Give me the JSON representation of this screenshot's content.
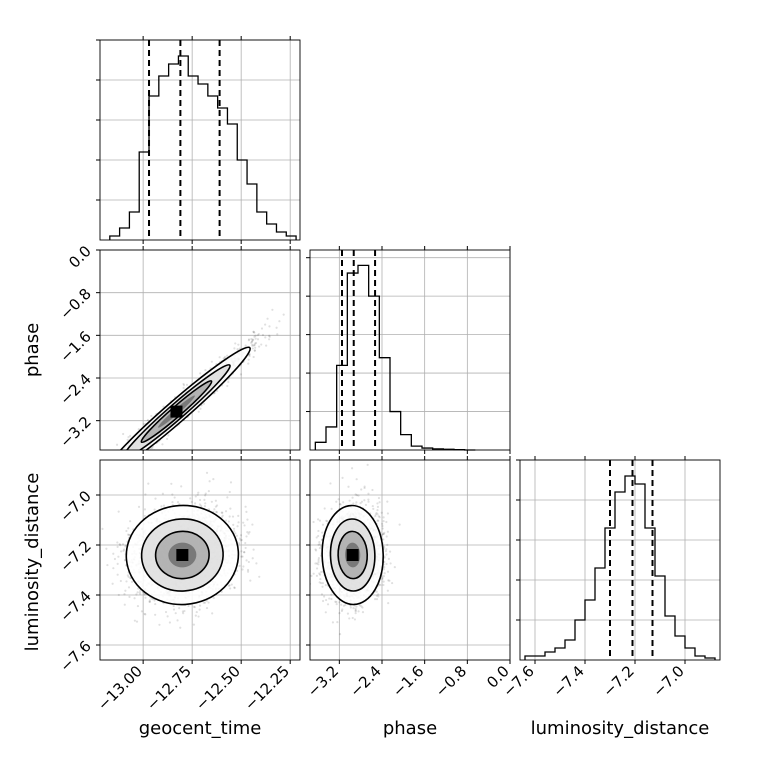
{
  "chart_data": {
    "type": "corner",
    "parameters": [
      "geocent_time",
      "phase",
      "luminosity_distance"
    ],
    "axis_labels": {
      "geocent_time": "geocent_time",
      "phase": "phase",
      "luminosity_distance": "luminosity_distance"
    },
    "ranges": {
      "geocent_time": [
        -13.22,
        -12.2
      ],
      "phase": [
        -3.75,
        0.0
      ],
      "luminosity_distance": [
        -7.66,
        -6.86
      ]
    },
    "ticks": {
      "geocent_time": [
        -13.0,
        -12.75,
        -12.5,
        -12.25
      ],
      "phase": [
        -3.2,
        -2.4,
        -1.6,
        -0.8,
        0.0
      ],
      "luminosity_distance": [
        -7.6,
        -7.4,
        -7.2,
        -7.0
      ]
    },
    "tick_labels": {
      "geocent_time": [
        "−13.00",
        "−12.75",
        "−12.50",
        "−12.25"
      ],
      "phase": [
        "−3.2",
        "−2.4",
        "−1.6",
        "−0.8",
        "0.0"
      ],
      "luminosity_distance": [
        "−7.6",
        "−7.4",
        "−7.2",
        "−7.0"
      ]
    },
    "quantiles": {
      "geocent_time": [
        -12.97,
        -12.81,
        -12.61
      ],
      "phase": [
        -3.15,
        -2.93,
        -2.53
      ],
      "luminosity_distance": [
        -7.3,
        -7.21,
        -7.13
      ]
    },
    "histograms": {
      "geocent_time": {
        "bins": [
          -13.17,
          -13.12,
          -13.07,
          -13.02,
          -12.97,
          -12.92,
          -12.87,
          -12.82,
          -12.77,
          -12.72,
          -12.67,
          -12.62,
          -12.57,
          -12.52,
          -12.47,
          -12.42,
          -12.37,
          -12.32,
          -12.27,
          -12.22
        ],
        "counts": [
          1,
          3,
          7,
          22,
          36,
          41,
          44,
          46,
          41,
          39,
          36,
          33,
          29,
          20,
          14,
          7,
          4,
          2,
          1
        ]
      },
      "phase": {
        "bins": [
          -3.65,
          -3.45,
          -3.25,
          -3.05,
          -2.85,
          -2.65,
          -2.45,
          -2.25,
          -2.05,
          -1.85,
          -1.65,
          -1.45,
          -1.25,
          -1.05,
          -0.85,
          -0.65
        ],
        "counts": [
          2,
          6,
          22,
          46,
          48,
          40,
          24,
          10,
          4,
          1,
          0.5,
          0.3,
          0.2,
          0.1,
          0
        ]
      },
      "luminosity_distance": {
        "bins": [
          -7.64,
          -7.6,
          -7.56,
          -7.52,
          -7.48,
          -7.44,
          -7.4,
          -7.36,
          -7.32,
          -7.28,
          -7.24,
          -7.2,
          -7.16,
          -7.12,
          -7.08,
          -7.04,
          -7.0,
          -6.96,
          -6.92,
          -6.88
        ],
        "counts": [
          1,
          1,
          2,
          3,
          5,
          10,
          15,
          23,
          33,
          42,
          46,
          44,
          33,
          21,
          11,
          6,
          3,
          1,
          0.5
        ]
      }
    },
    "hist_ymax": {
      "geocent_time": 50,
      "phase": 52,
      "luminosity_distance": 50
    },
    "hist_yticks": {
      "geocent_time": [
        10,
        20,
        30,
        40,
        50
      ],
      "phase": [
        10,
        20,
        30,
        40,
        50
      ],
      "luminosity_distance": [
        10,
        20,
        30,
        40,
        50
      ]
    },
    "joint": [
      {
        "x": "geocent_time",
        "y": "phase",
        "center": [
          -12.83,
          -3.03
        ],
        "sigma_major": 0.17,
        "sigma_minor_y": 0.12,
        "slope": 3.2,
        "levels": [
          0.35,
          0.6,
          0.85
        ]
      },
      {
        "x": "geocent_time",
        "y": "luminosity_distance",
        "center": [
          -12.8,
          -7.24
        ],
        "sigma": [
          0.13,
          0.09
        ],
        "corr": 0.12,
        "levels": [
          0.35,
          0.6,
          0.85
        ]
      },
      {
        "x": "phase",
        "y": "luminosity_distance",
        "center": [
          -2.95,
          -7.24
        ],
        "sigma": [
          0.26,
          0.09
        ],
        "corr": 0.05,
        "levels": [
          0.35,
          0.6,
          0.85
        ]
      }
    ],
    "grid": true,
    "colors": {
      "line": "#000000",
      "grid": "#b0b0b0",
      "points": "#000000",
      "density": "#000000"
    }
  }
}
